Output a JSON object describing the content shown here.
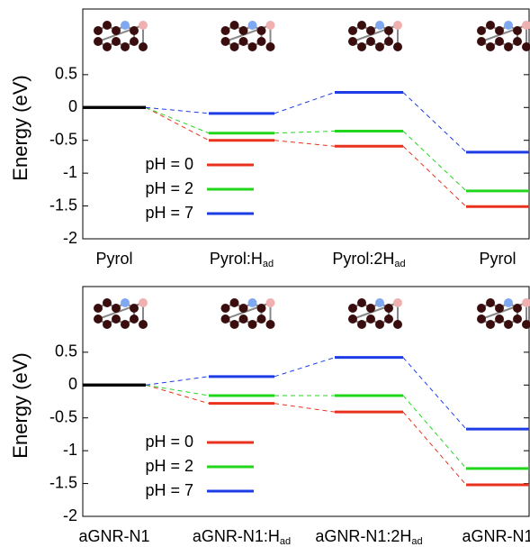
{
  "chart_data": [
    {
      "type": "step",
      "ylabel": "Energy (eV)",
      "categories": [
        "Pyrol",
        "Pyrol:H",
        "Pyrol:2H",
        "Pyrol"
      ],
      "category_subscripts": [
        null,
        "ad",
        "ad",
        null
      ],
      "start_color": "#000000",
      "legend": "lower left",
      "series": [
        {
          "name": "pH = 0",
          "color": "#e8321e",
          "values": [
            0,
            -0.5,
            -0.59,
            -1.51
          ]
        },
        {
          "name": "pH = 2",
          "color": "#22d61e",
          "values": [
            0,
            -0.39,
            -0.36,
            -1.27
          ]
        },
        {
          "name": "pH = 7",
          "color": "#1e3ce6",
          "values": [
            0,
            -0.09,
            0.23,
            -0.68
          ]
        }
      ],
      "ylim": [
        -2,
        1.5
      ],
      "yticks": [
        -2,
        -1.5,
        -1,
        -0.5,
        0,
        0.5
      ]
    },
    {
      "type": "step",
      "ylabel": "Energy (eV)",
      "categories": [
        "aGNR-N1",
        "aGNR-N1:H",
        "aGNR-N1:2H",
        "aGNR-N1"
      ],
      "category_subscripts": [
        null,
        "ad",
        "ad",
        null
      ],
      "start_color": "#000000",
      "legend": "lower left",
      "series": [
        {
          "name": "pH = 0",
          "color": "#e8321e",
          "values": [
            0,
            -0.28,
            -0.41,
            -1.52
          ]
        },
        {
          "name": "pH = 2",
          "color": "#22d61e",
          "values": [
            0,
            -0.16,
            -0.16,
            -1.27
          ]
        },
        {
          "name": "pH = 7",
          "color": "#1e3ce6",
          "values": [
            0,
            0.13,
            0.42,
            -0.67
          ]
        }
      ],
      "ylim": [
        -2,
        1.5
      ],
      "yticks": [
        -2,
        -1.5,
        -1,
        -0.5,
        0,
        0.5
      ]
    }
  ]
}
